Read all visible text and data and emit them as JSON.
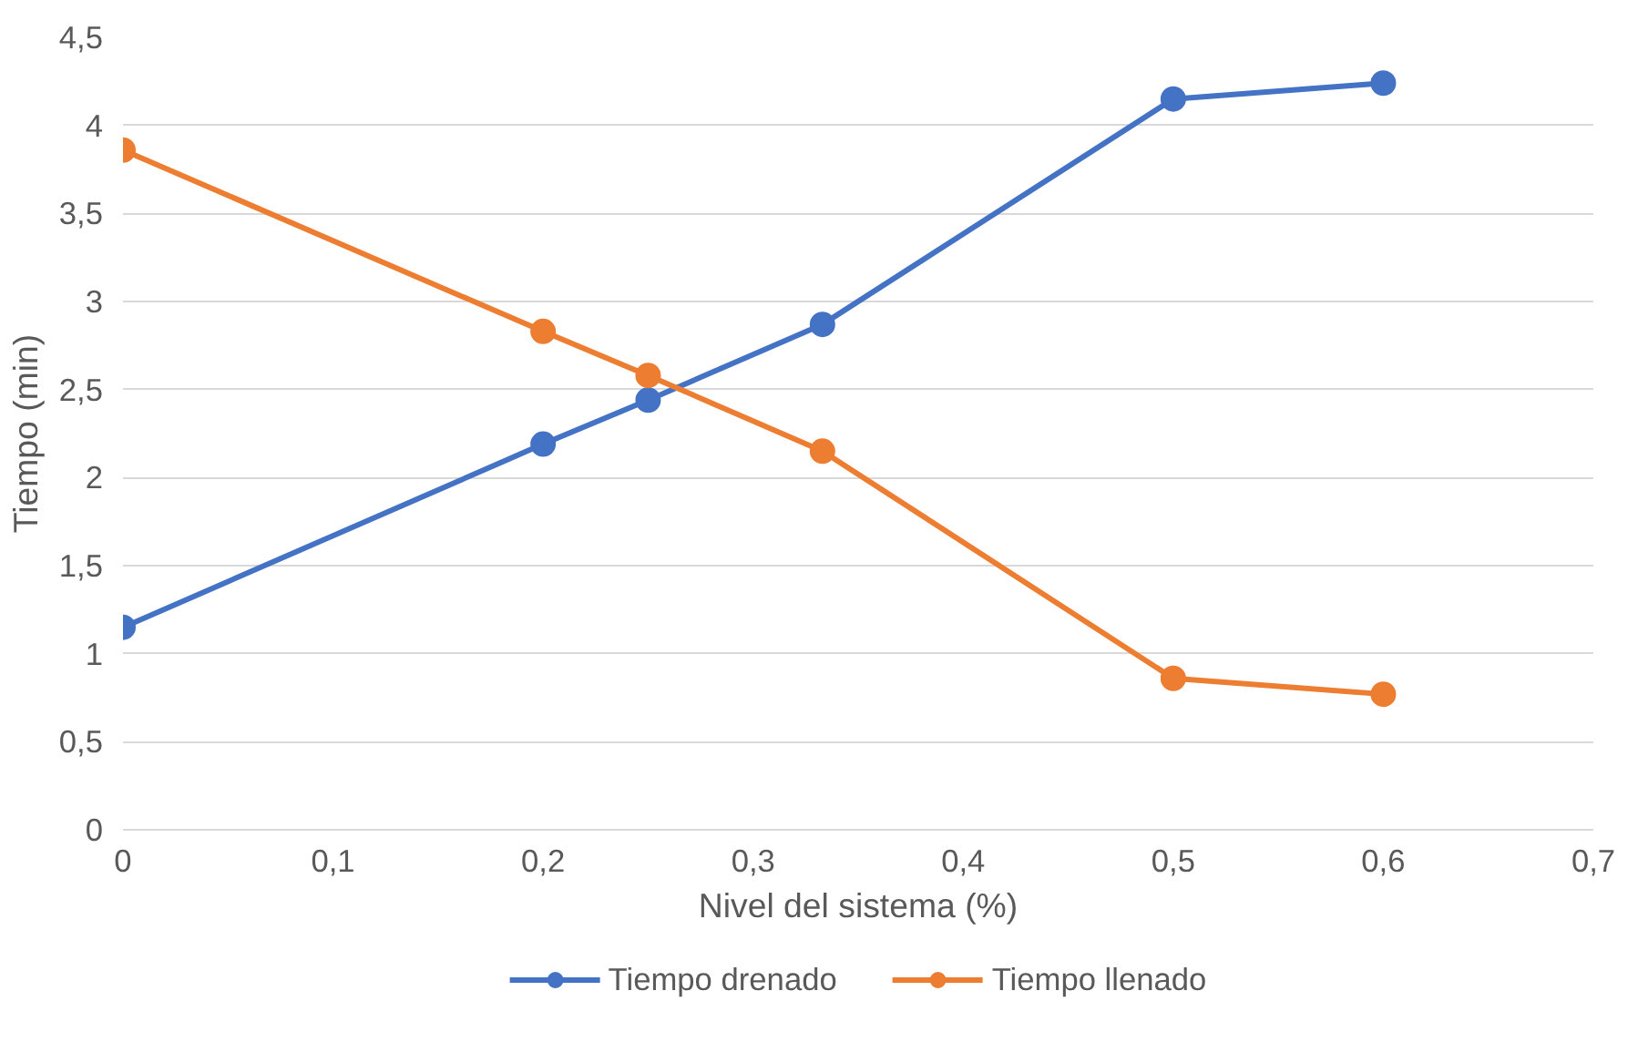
{
  "chart_data": {
    "type": "line",
    "xlabel": "Nivel del sistema (%)",
    "ylabel": "Tiempo (min)",
    "x": [
      0,
      0.2,
      0.25,
      0.333,
      0.5,
      0.6
    ],
    "series": [
      {
        "name": "Tiempo drenado",
        "color": "#4472c4",
        "values": [
          1.15,
          2.19,
          2.44,
          2.87,
          4.15,
          4.24
        ]
      },
      {
        "name": "Tiempo llenado",
        "color": "#ed7d31",
        "values": [
          3.86,
          2.83,
          2.58,
          2.15,
          0.86,
          0.77
        ]
      }
    ],
    "xlim": [
      0,
      0.7
    ],
    "ylim": [
      0,
      4.5
    ],
    "xticks": [
      0,
      {
        "value": 0.1,
        "label": "0,1"
      },
      {
        "value": 0.2,
        "label": "0,2"
      },
      {
        "value": 0.3,
        "label": "0,3"
      },
      {
        "value": 0.4,
        "label": "0,4"
      },
      {
        "value": 0.5,
        "label": "0,5"
      },
      {
        "value": 0.6,
        "label": "0,6"
      },
      {
        "value": 0.7,
        "label": "0,7"
      }
    ],
    "yticks": [
      0,
      {
        "value": 0.5,
        "label": "0,5"
      },
      1,
      {
        "value": 1.5,
        "label": "1,5"
      },
      2,
      {
        "value": 2.5,
        "label": "2,5"
      },
      3,
      {
        "value": 3.5,
        "label": "3,5"
      },
      4,
      {
        "value": 4.5,
        "label": "4,5"
      }
    ],
    "grid": "y",
    "legend": "bottom",
    "marker": "circle",
    "line_style": "solid"
  }
}
